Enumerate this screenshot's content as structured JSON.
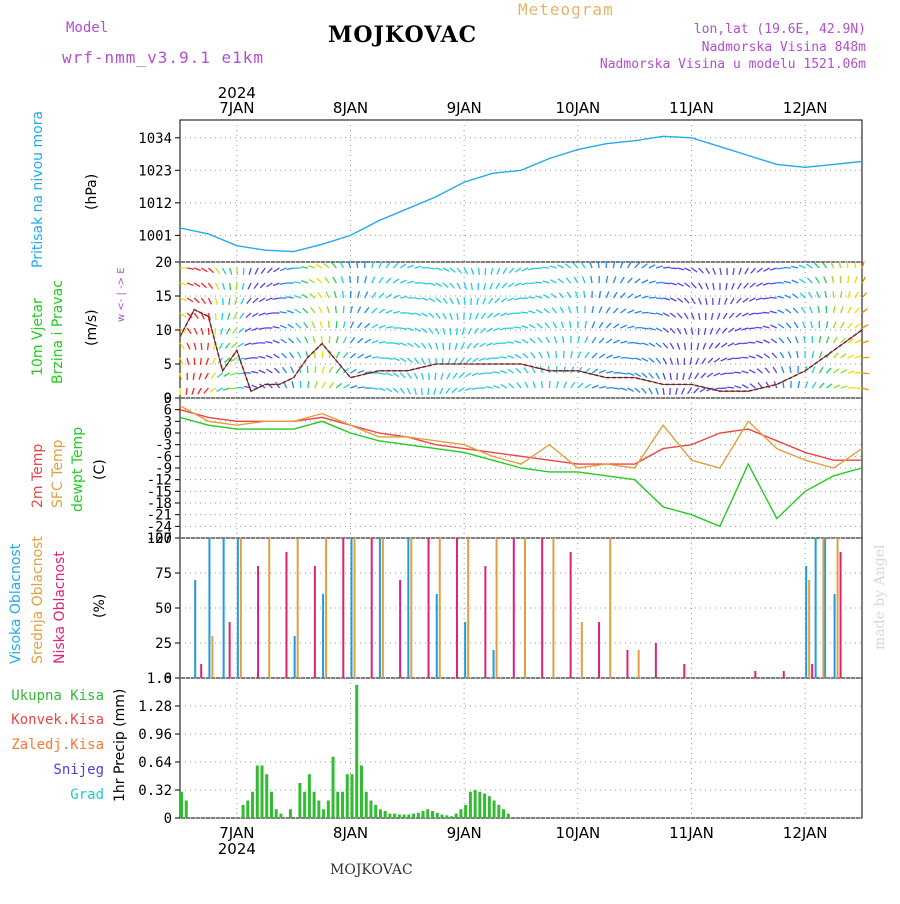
{
  "header": {
    "model_label": "Model",
    "model_name": "wrf-nmm_v3.9.1 e1km",
    "station": "MOJKOVAC",
    "title": "Meteogram",
    "lonlat": "lon,lat (19.6E, 42.9N)",
    "elevation": "Nadmorska Visina 848m",
    "model_elevation": "Nadmorska Visina u modelu 1521.06m"
  },
  "footer": {
    "station": "MOJKOVAC",
    "credit": "made by Angel"
  },
  "time_axis": {
    "top_year": "2024",
    "bottom_year": "2024",
    "ticks": [
      "7JAN",
      "8JAN",
      "9JAN",
      "10JAN",
      "11JAN",
      "12JAN"
    ]
  },
  "colors": {
    "pressure": "#22aaee",
    "temp2m": "#ee4444",
    "sfc_temp": "#e0a040",
    "dewpoint": "#22cc22",
    "high_cloud": "#2299e0",
    "mid_cloud": "#e0a040",
    "low_cloud": "#dd2277",
    "total_precip": "#33bb33",
    "conv_precip": "#ee4444",
    "frz_precip": "#ff7733",
    "snow": "#4444dd",
    "hail": "#22cccc",
    "wind_label": "#b04fd0"
  },
  "panels": {
    "pressure": {
      "label_main": "Pritisak na nivou mora",
      "label_unit": "(hPa)",
      "yticks": [
        "1034",
        "1023",
        "1012",
        "1001"
      ]
    },
    "wind": {
      "label_main": "10m Vjetar",
      "label_sub": "Brzina i Pravac",
      "label_unit": "(m/s)",
      "yticks": [
        "20",
        "15",
        "10",
        "5",
        "0"
      ],
      "compass": "w <- | -> E"
    },
    "temperature": {
      "label_2m": "2m Temp",
      "label_sfc": "SFC Temp",
      "label_dew": "dewpt Temp",
      "label_unit": "(C)",
      "yticks": [
        "9",
        "6",
        "3",
        "0",
        "-3",
        "-6",
        "-9",
        "-12",
        "-15",
        "-18",
        "-21",
        "-24",
        "-27"
      ]
    },
    "clouds": {
      "label_high": "Visoka Oblacnost",
      "label_mid": "Srednja Oblacnost",
      "label_low": "Niska Oblacnost",
      "label_unit": "(%)",
      "yticks": [
        "100",
        "75",
        "50",
        "25",
        "0"
      ]
    },
    "precip": {
      "legend": [
        "Ukupna Kisa",
        "Konvek.Kisa",
        "Zaledj.Kisa",
        "Snijeg",
        "Grad"
      ],
      "label_unit": "1hr Precip (mm)",
      "yticks": [
        "1.6",
        "1.28",
        "0.96",
        "0.64",
        "0.32",
        "0"
      ]
    }
  },
  "chart_data": [
    {
      "type": "line",
      "title": "Pritisak na nivou mora",
      "ylabel": "(hPa)",
      "x_unit": "hours since 2024-01-06 12:00",
      "ylim": [
        992,
        1040
      ],
      "series": [
        {
          "name": "Pritisak na nivou mora",
          "x": [
            0,
            6,
            12,
            18,
            24,
            30,
            36,
            42,
            48,
            54,
            60,
            66,
            72,
            78,
            84,
            90,
            96,
            102,
            108,
            114,
            120,
            126,
            132,
            138,
            144
          ],
          "values": [
            1003.5,
            1001.5,
            997.5,
            996,
            995.5,
            998,
            1001,
            1006,
            1010,
            1014,
            1019,
            1022,
            1023,
            1027,
            1030,
            1032,
            1033,
            1034.5,
            1034,
            1031,
            1028,
            1025,
            1024,
            1025,
            1026
          ]
        }
      ]
    },
    {
      "type": "line",
      "title": "10m Vjetar Brzina i Pravac",
      "ylabel": "(m/s)",
      "x_unit": "hours since 2024-01-06 12:00",
      "ylim": [
        0,
        20
      ],
      "series": [
        {
          "name": "Brzina",
          "x": [
            0,
            3,
            6,
            9,
            12,
            15,
            18,
            21,
            24,
            27,
            30,
            36,
            42,
            48,
            54,
            60,
            66,
            72,
            78,
            84,
            90,
            96,
            102,
            108,
            114,
            120,
            126,
            132,
            138,
            144
          ],
          "values": [
            9,
            13,
            12,
            4,
            7,
            1,
            2,
            2,
            3,
            6,
            8,
            3,
            4,
            4,
            5,
            5,
            5,
            5,
            4,
            4,
            3,
            3,
            2,
            2,
            1,
            1,
            2,
            4,
            7,
            10
          ]
        }
      ]
    },
    {
      "type": "line",
      "title": "Temperature",
      "ylabel": "(C)",
      "x_unit": "hours since 2024-01-06 12:00",
      "ylim": [
        -27,
        9
      ],
      "series": [
        {
          "name": "2m Temp",
          "x": [
            0,
            6,
            12,
            18,
            24,
            30,
            36,
            42,
            48,
            54,
            60,
            66,
            72,
            78,
            84,
            90,
            96,
            102,
            108,
            114,
            120,
            126,
            132,
            138,
            144
          ],
          "values": [
            6,
            4,
            3,
            3,
            3,
            4,
            2,
            0,
            -1,
            -3,
            -4,
            -5,
            -6,
            -7,
            -8,
            -8,
            -8,
            -4,
            -3,
            0,
            1,
            -2,
            -5,
            -7,
            -7
          ]
        },
        {
          "name": "SFC Temp",
          "x": [
            0,
            6,
            12,
            18,
            24,
            30,
            36,
            42,
            48,
            54,
            60,
            66,
            72,
            78,
            84,
            90,
            96,
            102,
            108,
            114,
            120,
            126,
            132,
            138,
            144
          ],
          "values": [
            7,
            3,
            2,
            3,
            3,
            5,
            2,
            -1,
            -1,
            -2,
            -3,
            -6,
            -8,
            -3,
            -9,
            -8,
            -9,
            2,
            -7,
            -9,
            3,
            -4,
            -7,
            -9,
            -4
          ]
        },
        {
          "name": "dewpt Temp",
          "x": [
            0,
            6,
            12,
            18,
            24,
            30,
            36,
            42,
            48,
            54,
            60,
            66,
            72,
            78,
            84,
            90,
            96,
            102,
            108,
            114,
            120,
            126,
            132,
            138,
            144
          ],
          "values": [
            4,
            2,
            1,
            1,
            1,
            3,
            0,
            -2,
            -3,
            -4,
            -5,
            -7,
            -9,
            -10,
            -10,
            -11,
            -12,
            -19,
            -21,
            -24,
            -8,
            -22,
            -15,
            -11,
            -9
          ]
        }
      ]
    },
    {
      "type": "bar",
      "title": "Oblacnost",
      "ylabel": "(%)",
      "x_unit": "hours since 2024-01-06 12:00",
      "ylim": [
        0,
        100
      ],
      "series": [
        {
          "name": "Visoka Oblacnost",
          "x": [
            3,
            6,
            9,
            12,
            24,
            30,
            36,
            42,
            48,
            54,
            60,
            66,
            72,
            78,
            84,
            132,
            134,
            136,
            138
          ],
          "values": [
            70,
            100,
            100,
            100,
            30,
            60,
            100,
            100,
            100,
            60,
            40,
            20,
            0,
            0,
            0,
            80,
            100,
            100,
            60
          ]
        },
        {
          "name": "Srednja Oblacnost",
          "x": [
            6,
            12,
            18,
            24,
            30,
            36,
            42,
            48,
            54,
            60,
            66,
            72,
            78,
            84,
            90,
            96,
            132,
            135,
            138
          ],
          "values": [
            30,
            100,
            100,
            100,
            100,
            100,
            100,
            100,
            100,
            100,
            100,
            100,
            100,
            40,
            100,
            20,
            70,
            100,
            100
          ]
        },
        {
          "name": "Niska Oblacnost",
          "x": [
            3,
            9,
            15,
            21,
            27,
            33,
            39,
            45,
            51,
            57,
            63,
            69,
            75,
            81,
            87,
            93,
            99,
            105,
            120,
            126,
            132,
            138
          ],
          "values": [
            10,
            40,
            80,
            90,
            80,
            100,
            100,
            70,
            100,
            100,
            80,
            100,
            100,
            90,
            40,
            20,
            25,
            10,
            5,
            5,
            10,
            90
          ]
        }
      ]
    },
    {
      "type": "bar",
      "title": "1hr Precip",
      "ylabel": "1hr Precip (mm)",
      "x_unit": "hours since 2024-01-06 12:00",
      "ylim": [
        0,
        1.6
      ],
      "series": [
        {
          "name": "Ukupna Kisa",
          "x": [
            0,
            1,
            13,
            14,
            15,
            16,
            17,
            18,
            19,
            20,
            21,
            23,
            25,
            26,
            27,
            28,
            29,
            30,
            31,
            32,
            33,
            34,
            35,
            36,
            37,
            38,
            39,
            40,
            41,
            42,
            43,
            44,
            45,
            46,
            47,
            48,
            49,
            50,
            51,
            52,
            53,
            54,
            55,
            56,
            57,
            58,
            59,
            60,
            61,
            62,
            63,
            64,
            65,
            66,
            67,
            68,
            69
          ],
          "values": [
            0.3,
            0.2,
            0.15,
            0.2,
            0.3,
            0.6,
            0.6,
            0.5,
            0.3,
            0.1,
            0.05,
            0.1,
            0.4,
            0.3,
            0.5,
            0.3,
            0.2,
            0.1,
            0.2,
            0.7,
            0.3,
            0.3,
            0.5,
            0.5,
            1.52,
            0.6,
            0.3,
            0.2,
            0.15,
            0.1,
            0.08,
            0.05,
            0.05,
            0.04,
            0.04,
            0.04,
            0.05,
            0.06,
            0.08,
            0.1,
            0.08,
            0.06,
            0.04,
            0.03,
            0.02,
            0.05,
            0.1,
            0.15,
            0.3,
            0.32,
            0.3,
            0.28,
            0.25,
            0.2,
            0.15,
            0.1,
            0.05
          ]
        }
      ]
    }
  ]
}
